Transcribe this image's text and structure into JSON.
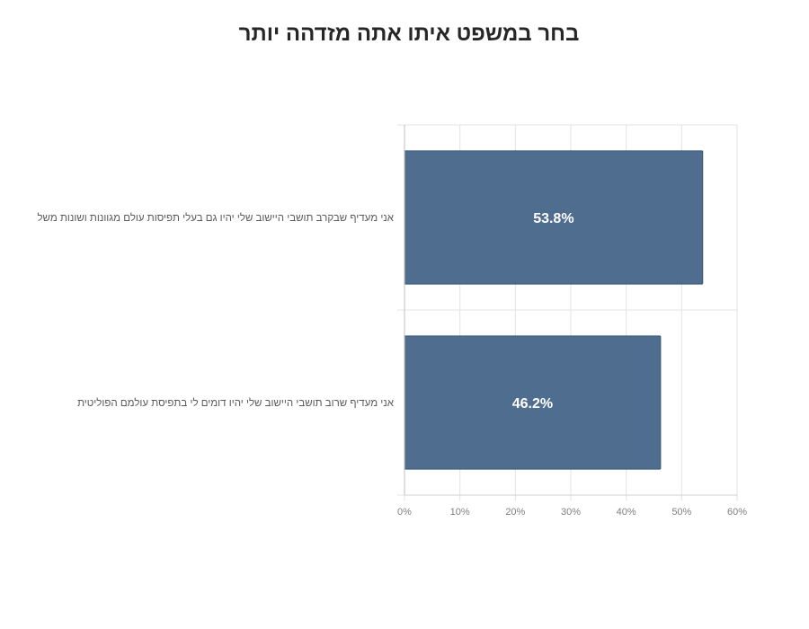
{
  "chart_data": {
    "type": "bar",
    "orientation": "horizontal",
    "title": "בחר במשפט איתו אתה מזדהה יותר",
    "categories": [
      "אני מעדיף שבקרב תושבי היישוב שלי יהיו גם בעלי תפיסות עולם מגוונות ושונות משל",
      "אני מעדיף שרוב תושבי היישוב שלי יהיו דומים לי בתפיסת עולמם הפוליטית"
    ],
    "values": [
      53.8,
      46.2
    ],
    "data_labels": [
      "53.8%",
      "46.2%"
    ],
    "xlim": [
      0,
      60
    ],
    "x_ticks": [
      "0%",
      "10%",
      "20%",
      "30%",
      "40%",
      "50%",
      "60%"
    ],
    "grid": true,
    "legend": "none",
    "bar_color": "#4f6d8f"
  }
}
